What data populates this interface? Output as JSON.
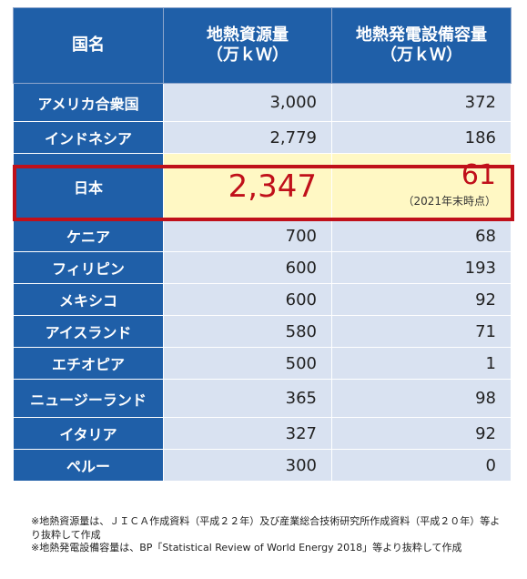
{
  "table": {
    "headers": [
      "国名",
      "地熱資源量\n（万ｋＷ）",
      "地熱発電設備容量\n（万ｋＷ）"
    ],
    "rows": [
      {
        "country": "アメリカ合衆国",
        "resource": "3,000",
        "capacity": "372"
      },
      {
        "country": "インドネシア",
        "resource": "2,779",
        "capacity": "186"
      },
      {
        "country": "日本",
        "resource": "2,347",
        "capacity": "61",
        "note": "（2021年末時点）"
      },
      {
        "country": "ケニア",
        "resource": "700",
        "capacity": "68"
      },
      {
        "country": "フィリピン",
        "resource": "600",
        "capacity": "193"
      },
      {
        "country": "メキシコ",
        "resource": "600",
        "capacity": "92"
      },
      {
        "country": "アイスランド",
        "resource": "580",
        "capacity": "71"
      },
      {
        "country": "エチオピア",
        "resource": "500",
        "capacity": "1"
      },
      {
        "country": "ニュージーランド",
        "resource": "365",
        "capacity": "98"
      },
      {
        "country": "イタリア",
        "resource": "327",
        "capacity": "92"
      },
      {
        "country": "ペルー",
        "resource": "300",
        "capacity": "0"
      }
    ]
  },
  "footnotes": [
    "※地熱資源量は、ＪＩＣＡ作成資料（平成２２年）及び産業総合技術研究所作成資料（平成２０年）等より抜粋して作成",
    "※地熱発電設備容量は、BP「Statistical Review of World Energy 2018」等より抜粋して作成"
  ],
  "colors": {
    "header_bg": "#1f5fa8",
    "cell_bg": "#d9e2f1",
    "japan_bg": "#fff8c4",
    "japan_text": "#c0101a",
    "highlight_border": "#c0101a"
  }
}
